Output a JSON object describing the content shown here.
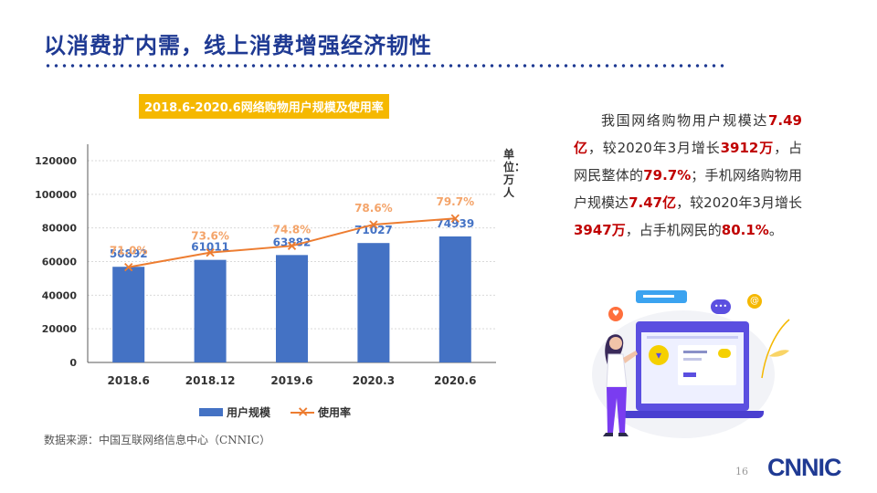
{
  "slide": {
    "title": "以消费扩内需，线上消费增强经济韧性",
    "source": "数据来源：中国互联网络信息中心（CNNIC）",
    "page_number": "16",
    "logo_text": "CNNIC"
  },
  "description": {
    "segments": [
      {
        "text": "我国网络购物用户规模达",
        "highlight": false
      },
      {
        "text": "7.49亿",
        "highlight": true
      },
      {
        "text": "，较2020年3月增长",
        "highlight": false
      },
      {
        "text": "3912万",
        "highlight": true
      },
      {
        "text": "，占网民整体的",
        "highlight": false
      },
      {
        "text": "79.7%",
        "highlight": true
      },
      {
        "text": "；手机网络购物用户规模达",
        "highlight": false
      },
      {
        "text": "7.47亿",
        "highlight": true
      },
      {
        "text": "，较2020年3月增长",
        "highlight": false
      },
      {
        "text": "3947万",
        "highlight": true
      },
      {
        "text": "，占手机网民的",
        "highlight": false
      },
      {
        "text": "80.1%",
        "highlight": true
      },
      {
        "text": "。",
        "highlight": false
      }
    ],
    "highlight_color": "#c00000"
  },
  "chart_data": {
    "type": "bar",
    "title": "2018.6-2020.6网络购物用户规模及使用率",
    "unit_label": "单位：万人",
    "categories": [
      "2018.6",
      "2018.12",
      "2019.6",
      "2020.3",
      "2020.6"
    ],
    "series": [
      {
        "name": "用户规模",
        "type": "bar",
        "values": [
          56892,
          61011,
          63882,
          71027,
          74939
        ],
        "color": "#4472c4"
      },
      {
        "name": "使用率",
        "type": "line",
        "values": [
          71.0,
          73.6,
          74.8,
          78.6,
          79.7
        ],
        "labels": [
          "71.0%",
          "73.6%",
          "74.8%",
          "78.6%",
          "79.7%"
        ],
        "color": "#ed7d31"
      }
    ],
    "y_ticks": [
      0,
      20000,
      40000,
      60000,
      80000,
      100000,
      120000
    ],
    "ylim": [
      0,
      120000
    ],
    "legend_position": "bottom",
    "grid": true
  },
  "colors": {
    "title": "#1f3a93",
    "accent": "#f5b800",
    "bar": "#4472c4",
    "line": "#ed7d31"
  }
}
